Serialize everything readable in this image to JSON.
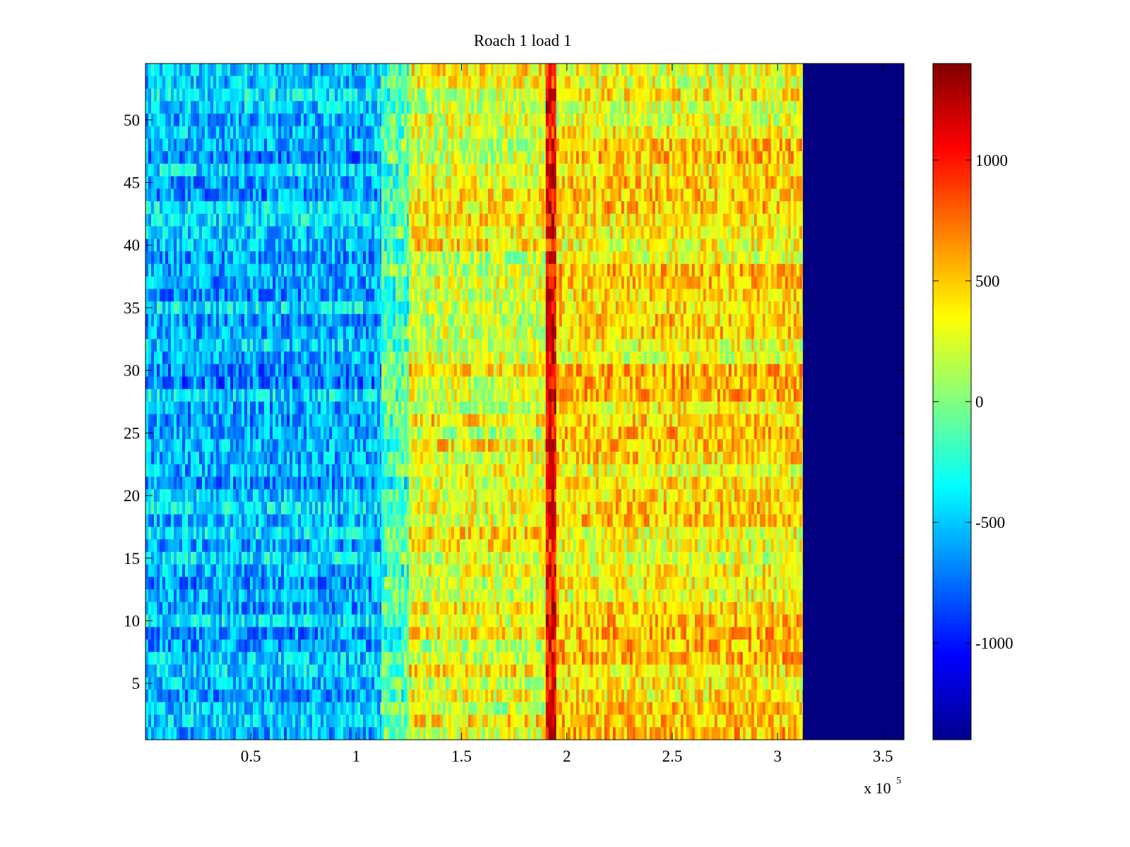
{
  "chart_data": {
    "type": "heatmap",
    "title": "Roach 1 load 1",
    "xlabel": "",
    "ylabel": "",
    "x_multiplier_label": "x 10",
    "x_multiplier_exponent": "5",
    "xlim": [
      0,
      3.6
    ],
    "ylim": [
      0.5,
      54.5
    ],
    "x_ticks": [
      {
        "value": 0.5,
        "label": "0.5"
      },
      {
        "value": 1,
        "label": "1"
      },
      {
        "value": 1.5,
        "label": "1.5"
      },
      {
        "value": 2,
        "label": "2"
      },
      {
        "value": 2.5,
        "label": "2.5"
      },
      {
        "value": 3,
        "label": "3"
      },
      {
        "value": 3.5,
        "label": "3.5"
      }
    ],
    "y_ticks": [
      {
        "value": 5,
        "label": "5"
      },
      {
        "value": 10,
        "label": "10"
      },
      {
        "value": 15,
        "label": "15"
      },
      {
        "value": 20,
        "label": "20"
      },
      {
        "value": 25,
        "label": "25"
      },
      {
        "value": 30,
        "label": "30"
      },
      {
        "value": 35,
        "label": "35"
      },
      {
        "value": 40,
        "label": "40"
      },
      {
        "value": 45,
        "label": "45"
      },
      {
        "value": 50,
        "label": "50"
      }
    ],
    "rows": 54,
    "data_x_end": 3.12,
    "colorbar": {
      "colormap": "jet",
      "clim": [
        -1400,
        1400
      ],
      "ticks": [
        {
          "value": 1000,
          "label": "1000"
        },
        {
          "value": 500,
          "label": "500"
        },
        {
          "value": 0,
          "label": "0"
        },
        {
          "value": -500,
          "label": "-500"
        },
        {
          "value": -1000,
          "label": "-1000"
        }
      ]
    },
    "regions": [
      {
        "x_start": 0.0,
        "x_end": 1.12,
        "mean_value": -550
      },
      {
        "x_start": 1.12,
        "x_end": 1.25,
        "mean_value": -150
      },
      {
        "x_start": 1.25,
        "x_end": 1.9,
        "mean_value": 300
      },
      {
        "x_start": 1.9,
        "x_end": 1.95,
        "mean_value": 1050
      },
      {
        "x_start": 1.95,
        "x_end": 3.12,
        "mean_value": 400
      },
      {
        "x_start": 3.12,
        "x_end": 3.6,
        "mean_value": -1400
      }
    ]
  }
}
